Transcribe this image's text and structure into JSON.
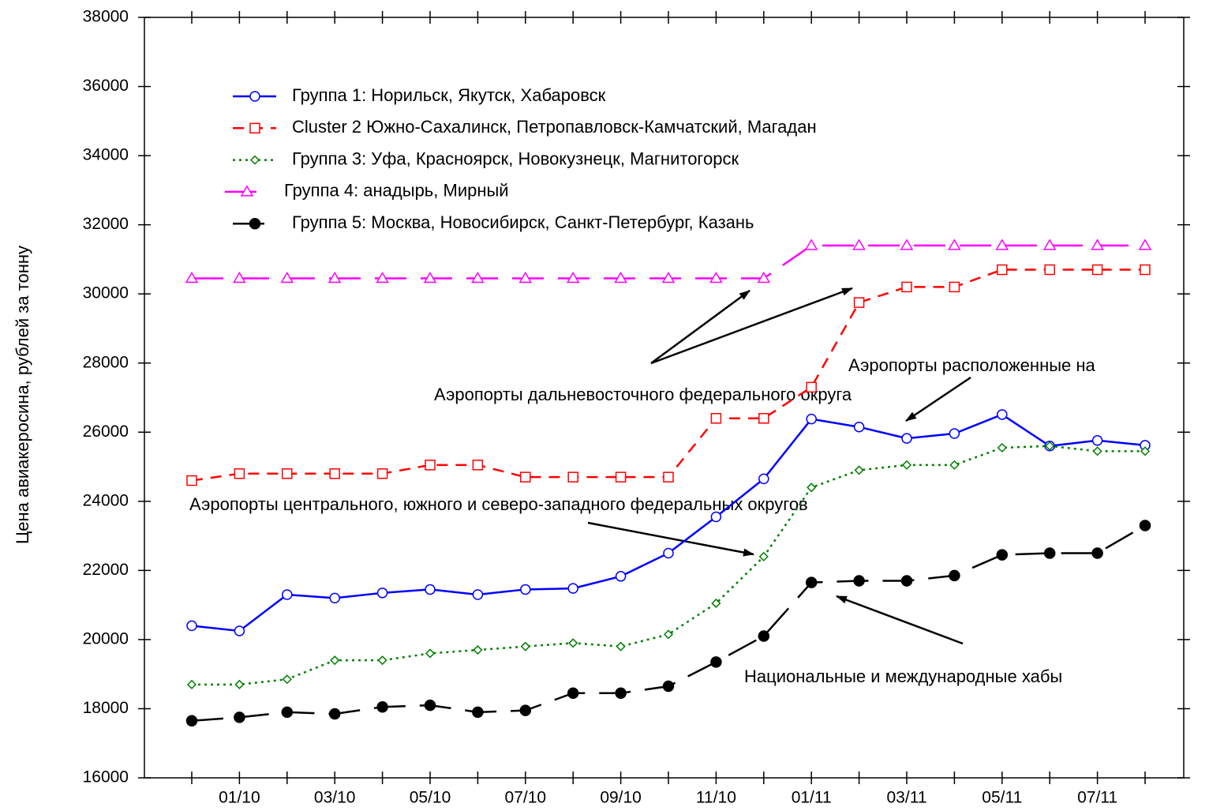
{
  "chart_data": {
    "type": "line",
    "ylabel": "Цена авиакеросина, рублей  за тонну",
    "categories": [
      null,
      "01/10",
      null,
      "03/10",
      null,
      "05/10",
      null,
      "07/10",
      null,
      "09/10",
      null,
      "11/10",
      null,
      "01/11",
      null,
      "03/11",
      null,
      "05/11",
      null,
      "07/11",
      null
    ],
    "ylim": [
      16000,
      38000
    ],
    "yticks": [
      16000,
      18000,
      20000,
      22000,
      24000,
      26000,
      28000,
      30000,
      32000,
      34000,
      36000,
      38000
    ],
    "grid": false,
    "legend": "upper left",
    "series": [
      {
        "name": "Группа 1: Норильск, Якутск, Хабаровск",
        "color": "#0000ff",
        "line_style": "solid",
        "marker": "circle",
        "values": [
          20400,
          20250,
          21300,
          21200,
          21350,
          21450,
          21300,
          21450,
          21480,
          21830,
          22500,
          23550,
          24650,
          26380,
          26150,
          25820,
          25960,
          26510,
          25600,
          25760,
          25620
        ]
      },
      {
        "name": "Cluster  2  Южно-Сахалинск, Петропавловск-Камчатский, Магадан",
        "color": "#ff0000",
        "line_style": "dashed",
        "marker": "square",
        "values": [
          24600,
          24800,
          24800,
          24800,
          24800,
          25050,
          25050,
          24700,
          24700,
          24700,
          24700,
          26400,
          26400,
          27300,
          29750,
          30200,
          30200,
          30700,
          30700,
          30700,
          30700
        ]
      },
      {
        "name": "Группа 3: Уфа, Красноярск, Новокузнецк, Магнитогорск",
        "color": "#008000",
        "line_style": "dotted",
        "marker": "diamond",
        "values": [
          18700,
          18700,
          18850,
          19400,
          19400,
          19600,
          19700,
          19800,
          19900,
          19800,
          20150,
          21050,
          22400,
          24400,
          24900,
          25050,
          25050,
          25550,
          25600,
          25450,
          25450
        ]
      },
      {
        "name": "Группа 4: анадырь, Мирный",
        "color": "#ff00ff",
        "line_style": "long-dash",
        "marker": "triangle",
        "values": [
          30450,
          30450,
          30450,
          30450,
          30450,
          30450,
          30450,
          30450,
          30450,
          30450,
          30450,
          30450,
          30450,
          31400,
          31400,
          31400,
          31400,
          31400,
          31400,
          31400,
          31400
        ]
      },
      {
        "name": "Группа 5: Москва, Новосибирск, Санкт-Петербург, Казань",
        "color": "#000000",
        "line_style": "long-dash",
        "marker": "filled-circle",
        "values": [
          17650,
          17750,
          17900,
          17850,
          18050,
          18100,
          17900,
          17950,
          18450,
          18450,
          18650,
          19350,
          20100,
          21650,
          21700,
          21700,
          21850,
          22450,
          22500,
          22500,
          23300
        ]
      }
    ],
    "annotations": [
      "Аэропорты  расположенные  на",
      "Аэропорты дальневосточного федерального округа",
      "Аэропорты центрального, южного и северо-западного федеральных округов",
      "Национальные и международные  хабы"
    ]
  }
}
